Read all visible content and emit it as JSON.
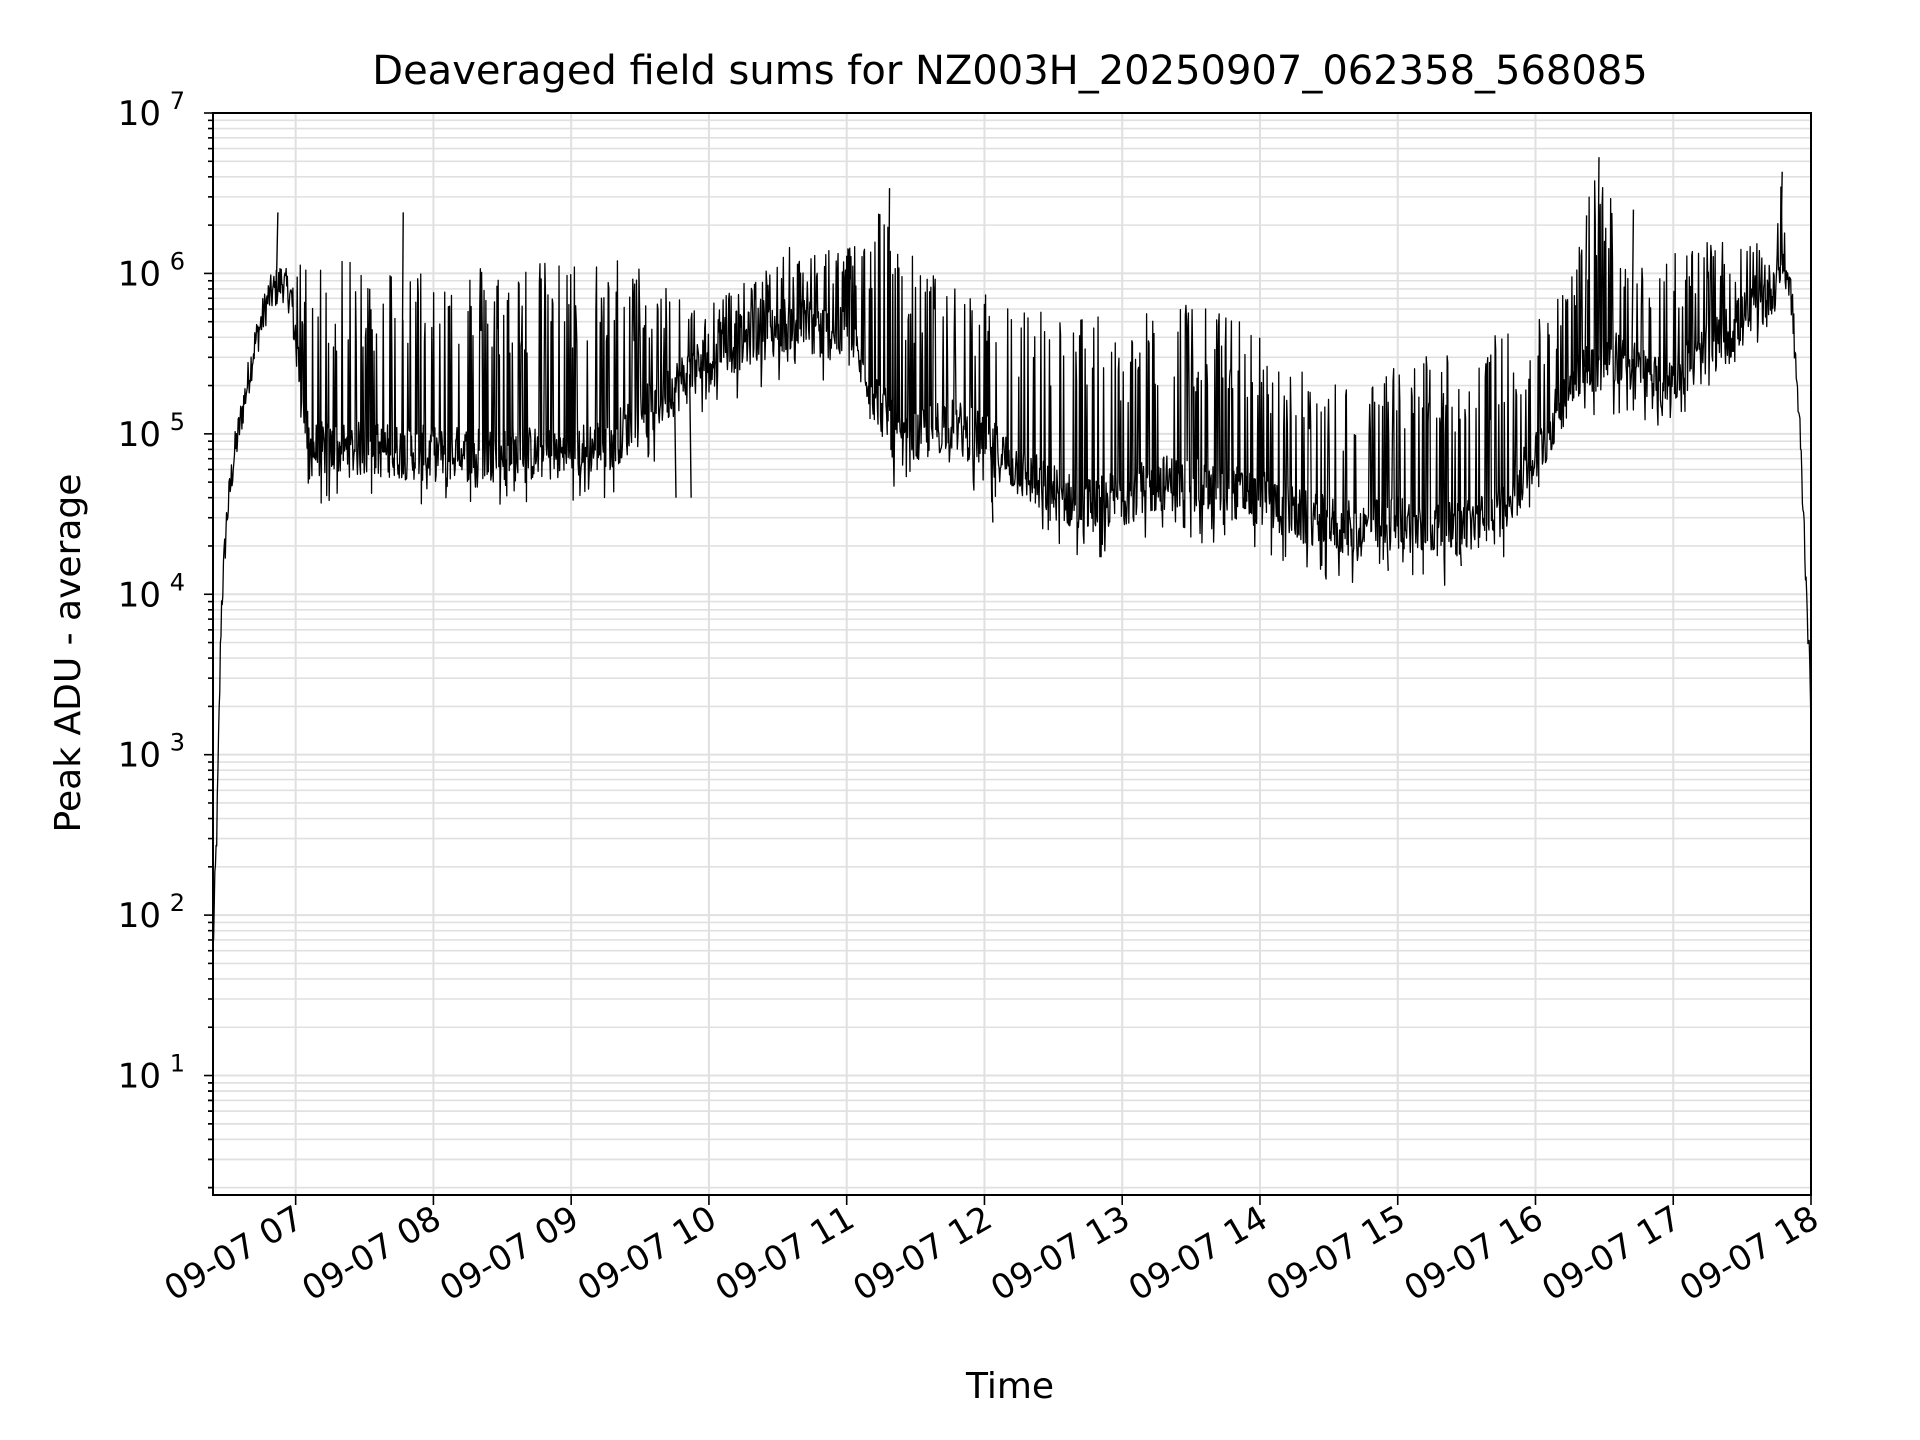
{
  "chart_data": {
    "type": "line",
    "title": "Deaveraged field sums for NZ003H_20250907_062358_568085",
    "xlabel": "Time",
    "ylabel": "Peak ADU - average",
    "yscale": "log",
    "ylim": [
      1.8,
      10000000
    ],
    "xlim": [
      "2025-09-07 06:24",
      "2025-09-07 18:00"
    ],
    "grid": true,
    "legend": "none",
    "colors": {
      "line": "#000000",
      "grid": "#e0e0e0",
      "axes": "#000000"
    },
    "x_ticks": [
      "09-07 07",
      "09-07 08",
      "09-07 09",
      "09-07 10",
      "09-07 11",
      "09-07 12",
      "09-07 13",
      "09-07 14",
      "09-07 15",
      "09-07 16",
      "09-07 17",
      "09-07 18"
    ],
    "x_tick_hours": [
      7,
      8,
      9,
      10,
      11,
      12,
      13,
      14,
      15,
      16,
      17,
      18
    ],
    "y_ticks": [
      {
        "value": 10,
        "base": "10",
        "exp": "1"
      },
      {
        "value": 100,
        "base": "10",
        "exp": "2"
      },
      {
        "value": 1000,
        "base": "10",
        "exp": "3"
      },
      {
        "value": 10000,
        "base": "10",
        "exp": "4"
      },
      {
        "value": 100000,
        "base": "10",
        "exp": "5"
      },
      {
        "value": 1000000,
        "base": "10",
        "exp": "6"
      },
      {
        "value": 10000000,
        "base": "10",
        "exp": "7"
      }
    ],
    "series": [
      {
        "note_envelope": "hours since midnight (decimal), approximate values read from the plotted trace",
        "baseline": [
          [
            6.4,
            60
          ],
          [
            6.43,
            400
          ],
          [
            6.46,
            8000
          ],
          [
            6.5,
            30000
          ],
          [
            6.55,
            70000
          ],
          [
            6.62,
            150000
          ],
          [
            6.7,
            350000
          ],
          [
            6.8,
            700000
          ],
          [
            6.9,
            900000
          ],
          [
            6.97,
            700000
          ],
          [
            7.05,
            150000
          ],
          [
            7.1,
            80000
          ],
          [
            7.5,
            80000
          ],
          [
            8.0,
            75000
          ],
          [
            8.5,
            75000
          ],
          [
            9.0,
            75000
          ],
          [
            9.3,
            90000
          ],
          [
            9.6,
            150000
          ],
          [
            10.0,
            300000
          ],
          [
            10.3,
            400000
          ],
          [
            10.6,
            500000
          ],
          [
            11.0,
            400000
          ],
          [
            11.4,
            80000
          ],
          [
            11.7,
            120000
          ],
          [
            12.0,
            90000
          ],
          [
            12.3,
            55000
          ],
          [
            12.7,
            35000
          ],
          [
            13.0,
            40000
          ],
          [
            13.3,
            50000
          ],
          [
            13.7,
            45000
          ],
          [
            14.0,
            40000
          ],
          [
            14.3,
            30000
          ],
          [
            14.7,
            25000
          ],
          [
            15.0,
            28000
          ],
          [
            15.4,
            25000
          ],
          [
            15.7,
            30000
          ],
          [
            16.0,
            70000
          ],
          [
            16.3,
            250000
          ],
          [
            16.6,
            300000
          ],
          [
            16.9,
            200000
          ],
          [
            17.2,
            300000
          ],
          [
            17.6,
            600000
          ],
          [
            17.75,
            900000
          ],
          [
            17.8,
            1300000
          ],
          [
            17.86,
            700000
          ],
          [
            17.92,
            100000
          ],
          [
            17.97,
            10000
          ],
          [
            18.0,
            1800
          ]
        ],
        "top": [
          [
            6.4,
            60
          ],
          [
            6.5,
            30000
          ],
          [
            6.7,
            400000
          ],
          [
            6.9,
            1700000
          ],
          [
            7.05,
            1200000
          ],
          [
            7.5,
            1200000
          ],
          [
            8.0,
            1200000
          ],
          [
            8.5,
            1200000
          ],
          [
            9.0,
            1200000
          ],
          [
            9.3,
            1400000
          ],
          [
            9.6,
            1000000
          ],
          [
            10.0,
            700000
          ],
          [
            10.3,
            900000
          ],
          [
            10.6,
            1500000
          ],
          [
            11.0,
            1500000
          ],
          [
            11.3,
            3400000
          ],
          [
            11.5,
            1200000
          ],
          [
            11.8,
            800000
          ],
          [
            12.2,
            700000
          ],
          [
            12.6,
            600000
          ],
          [
            13.0,
            500000
          ],
          [
            13.5,
            700000
          ],
          [
            13.9,
            500000
          ],
          [
            14.3,
            250000
          ],
          [
            14.7,
            200000
          ],
          [
            15.1,
            300000
          ],
          [
            15.5,
            400000
          ],
          [
            15.9,
            450000
          ],
          [
            16.2,
            800000
          ],
          [
            16.45,
            5300000
          ],
          [
            16.7,
            1500000
          ],
          [
            17.0,
            1500000
          ],
          [
            17.4,
            1600000
          ],
          [
            17.7,
            1500000
          ],
          [
            17.78,
            4300000
          ],
          [
            17.86,
            900000
          ],
          [
            18.0,
            1800
          ]
        ],
        "bottom_fraction": 0.45,
        "spikes": [
          [
            6.86,
            2400000
          ],
          [
            7.77,
            2400000
          ],
          [
            11.3,
            3400000
          ],
          [
            12.05,
            28000
          ],
          [
            16.45,
            5300000
          ],
          [
            16.36,
            2300000
          ],
          [
            17.78,
            4300000
          ],
          [
            16.7,
            2500000
          ],
          [
            9.75,
            40000
          ],
          [
            9.86,
            40000
          ],
          [
            14.92,
            14000
          ],
          [
            15.45,
            15000
          ]
        ]
      }
    ]
  }
}
